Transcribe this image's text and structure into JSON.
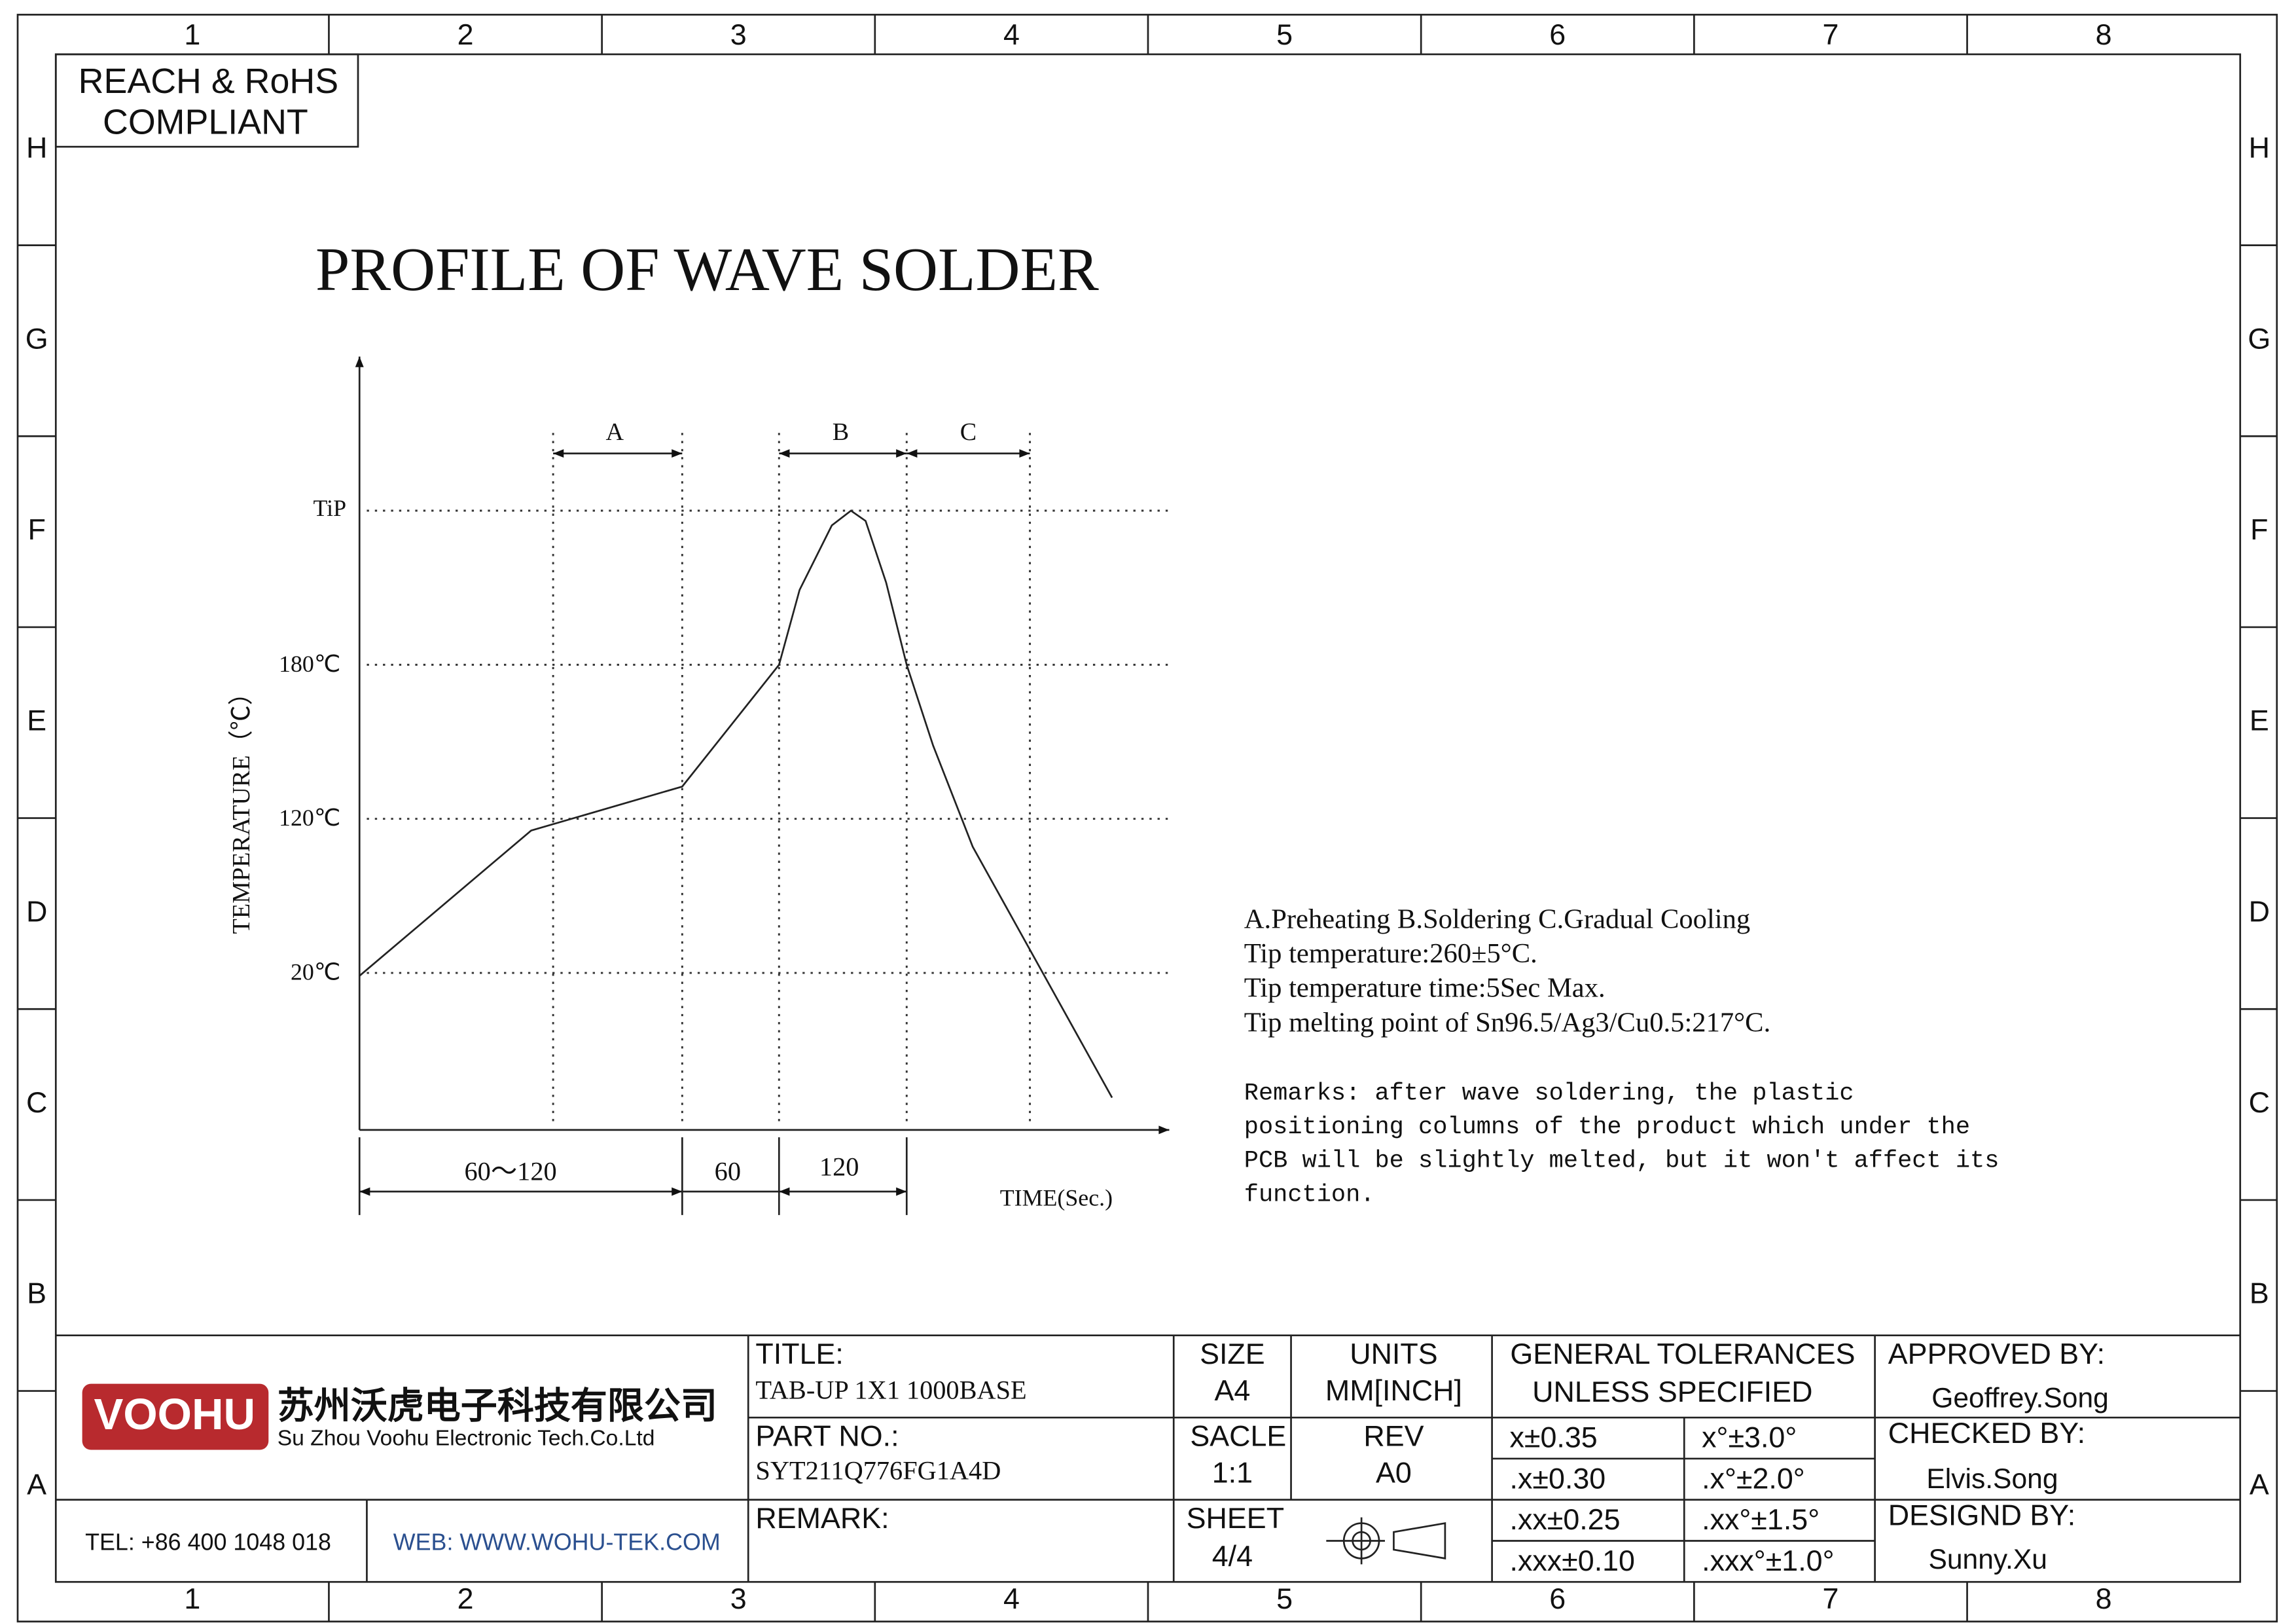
{
  "border": {
    "columns": [
      "1",
      "2",
      "3",
      "4",
      "5",
      "6",
      "7",
      "8"
    ],
    "rows": [
      "H",
      "G",
      "F",
      "E",
      "D",
      "C",
      "B",
      "A"
    ]
  },
  "compliance": [
    "REACH & RoHS",
    "COMPLIANT"
  ],
  "diagram": {
    "title": "PROFILE OF WAVE SOLDER",
    "y_axis_label": "TEMPERATURE（℃）",
    "x_axis_label": "TIME(Sec.)",
    "y_labels": [
      "TiP",
      "180℃",
      "120℃",
      "20℃"
    ],
    "zones": [
      "A",
      "B",
      "C"
    ],
    "durations": [
      "60～120",
      "60",
      "120"
    ]
  },
  "notes": {
    "lines": [
      "A.Preheating  B.Soldering  C.Gradual Cooling",
      "Tip temperature:260±5°C.",
      "Tip temperature time:5Sec Max.",
      "Tip melting point of Sn96.5/Ag3/Cu0.5:217°C."
    ],
    "remarks": [
      "Remarks: after wave soldering, the plastic",
      "positioning columns of the product  which under the",
      "PCB will be slightly melted, but it won't affect its",
      "function."
    ]
  },
  "title_block": {
    "logo": "VOOHU",
    "company_cn": "苏州沃虎电子科技有限公司",
    "company_en": "Su Zhou Voohu Electronic Tech.Co.Ltd",
    "tel": "TEL: +86 400 1048 018",
    "web": "WEB: WWW.WOHU-TEK.COM",
    "title_label": "TITLE:",
    "title": "TAB-UP 1X1 1000BASE",
    "part_label": "PART NO.:",
    "part": "SYT211Q776FG1A4D",
    "remark_label": "REMARK:",
    "size_label": "SIZE",
    "size": "A4",
    "units_label": "UNITS",
    "units": "MM[INCH]",
    "scale_label": "SACLE",
    "scale": "1:1",
    "rev_label": "REV",
    "rev": "A0",
    "sheet_label": "SHEET",
    "sheet": "4/4",
    "tolerance_header": [
      "GENERAL TOLERANCES",
      "UNLESS SPECIFIED"
    ],
    "tolerances": [
      [
        "x±0.35",
        "x°±3.0°"
      ],
      [
        ".x±0.30",
        ".x°±2.0°"
      ],
      [
        ".xx±0.25",
        ".xx°±1.5°"
      ],
      [
        ".xxx±0.10",
        ".xxx°±1.0°"
      ]
    ],
    "approved_label": "APPROVED BY:",
    "approved": "Geoffrey.Song",
    "checked_label": "CHECKED BY:",
    "checked": "Elvis.Song",
    "designed_label": "DESIGND BY:",
    "designed": "Sunny.Xu"
  }
}
